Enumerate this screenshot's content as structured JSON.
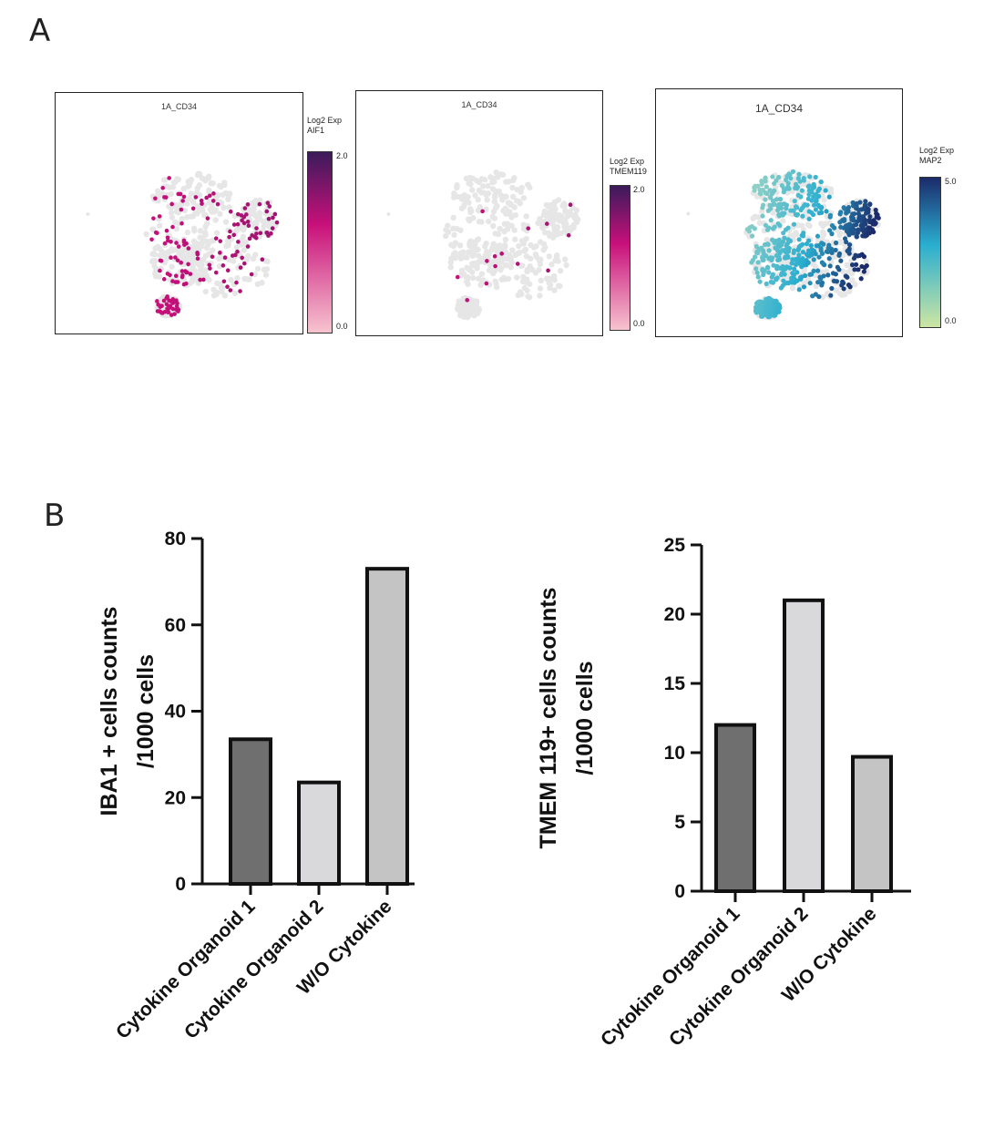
{
  "panel_labels": {
    "a": "A",
    "b": "B"
  },
  "colors": {
    "point_grey": "#e6e6e6",
    "magenta_high": "#3b1b5a",
    "magenta_mid": "#c8107a",
    "magenta_low": "#f7c4cf",
    "blue_high": "#1b2b6b",
    "blue_mid": "#2aaed0",
    "blue_low": "#cde6a3",
    "bar_dark": "#6f6f6f",
    "bar_light": "#d9d9db",
    "bar_mid": "#c4c4c4"
  },
  "umap_panels": [
    {
      "title": "1A_CD34",
      "legend_line1": "Log2 Exp",
      "legend_line2": "AIF1",
      "max_label": "2.0",
      "min_label": "0.0",
      "palette": "magenta"
    },
    {
      "title": "1A_CD34",
      "legend_line1": "Log2 Exp",
      "legend_line2": "TMEM119",
      "max_label": "2.0",
      "min_label": "0.0",
      "palette": "magenta"
    },
    {
      "title": "1A_CD34",
      "legend_line1": "Log2 Exp",
      "legend_line2": "MAP2",
      "max_label": "5.0",
      "min_label": "0.0",
      "palette": "blue"
    }
  ],
  "chart_data": [
    {
      "type": "bar",
      "categories": [
        "Cytokine Organoid 1",
        "Cytokine Organoid 2",
        "W/O Cytokine"
      ],
      "values": [
        33.5,
        23.5,
        73
      ],
      "ylabel_line1": "IBA1 + cells counts",
      "ylabel_line2": "/1000 cells",
      "ylim": [
        0,
        80
      ],
      "yticks": [
        0,
        20,
        40,
        60,
        80
      ],
      "bar_colors": [
        "#6f6f6f",
        "#d9d9db",
        "#c4c4c4"
      ]
    },
    {
      "type": "bar",
      "categories": [
        "Cytokine Organoid 1",
        "Cytokine Organoid 2",
        "W/O Cytokine"
      ],
      "values": [
        12,
        21,
        9.7
      ],
      "ylabel_line1": "TMEM 119+ cells counts",
      "ylabel_line2": "/1000 cells",
      "ylim": [
        0,
        25
      ],
      "yticks": [
        0,
        5,
        10,
        15,
        20,
        25
      ],
      "bar_colors": [
        "#6f6f6f",
        "#d9d9db",
        "#c4c4c4"
      ]
    }
  ]
}
